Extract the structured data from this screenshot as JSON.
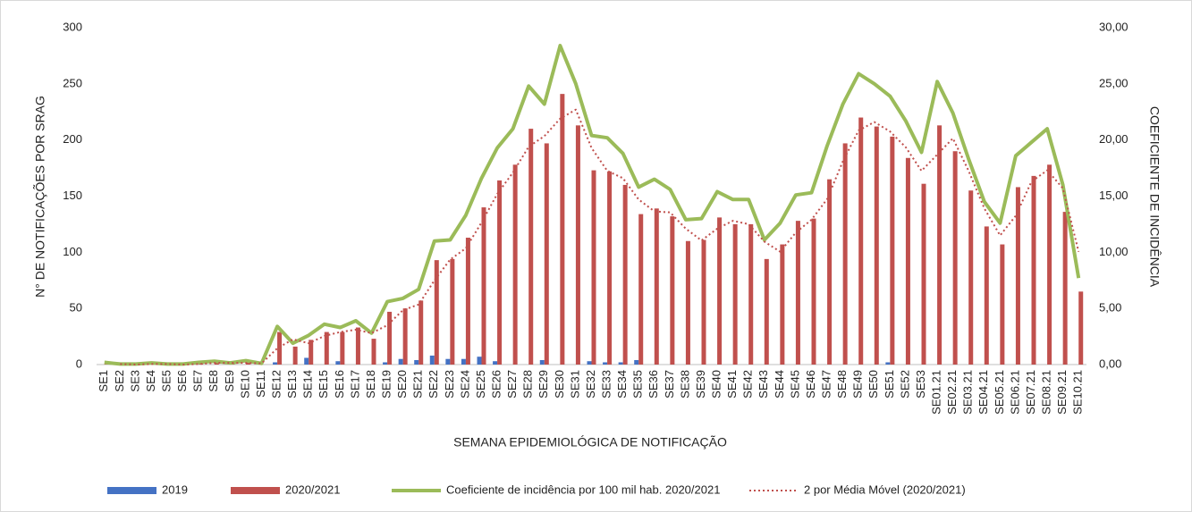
{
  "chart_data": {
    "type": "bar",
    "xlabel": "SEMANA EPIDEMIOLÓGICA DE NOTIFICAÇÃO",
    "ylabel": "N° DE NOTIFICAÇÕES POR SRAG",
    "y2label": "COEFICIENTE DE INCIDÊNCIA",
    "categories": [
      "SE1",
      "SE2",
      "SE3",
      "SE4",
      "SE5",
      "SE6",
      "SE7",
      "SE8",
      "SE9",
      "SE10",
      "SE11",
      "SE12",
      "SE13",
      "SE14",
      "SE15",
      "SE16",
      "SE17",
      "SE18",
      "SE19",
      "SE20",
      "SE21",
      "SE22",
      "SE23",
      "SE24",
      "SE25",
      "SE26",
      "SE27",
      "SE28",
      "SE29",
      "SE30",
      "SE31",
      "SE32",
      "SE33",
      "SE34",
      "SE35",
      "SE36",
      "SE37",
      "SE38",
      "SE39",
      "SE40",
      "SE41",
      "SE42",
      "SE43",
      "SE44",
      "SE45",
      "SE46",
      "SE47",
      "SE48",
      "SE49",
      "SE50",
      "SE51",
      "SE52",
      "SE53",
      "SE01.21",
      "SE02.21",
      "SE03.21",
      "SE04.21",
      "SE05.21",
      "SE06.21",
      "SE07.21",
      "SE08.21",
      "SE09.21",
      "SE10.21"
    ],
    "series": [
      {
        "name": "2019",
        "type": "bar",
        "color": "#4472c4",
        "values": [
          0,
          0,
          0,
          0,
          0,
          0,
          0,
          0,
          0,
          0,
          0,
          2,
          0,
          6,
          0,
          3,
          0,
          0,
          2,
          5,
          4,
          8,
          5,
          5,
          7,
          3,
          0,
          0,
          4,
          0,
          0,
          3,
          2,
          2,
          4,
          0,
          0,
          0,
          0,
          0,
          0,
          0,
          0,
          0,
          0,
          0,
          0,
          0,
          0,
          0,
          2,
          0,
          0,
          0,
          0,
          0,
          0,
          0,
          0,
          0,
          0,
          0,
          0
        ]
      },
      {
        "name": "2020/2021",
        "type": "bar",
        "color": "#c0504d",
        "values": [
          1,
          0,
          0,
          1,
          0,
          0,
          1,
          2,
          1,
          2,
          0,
          29,
          16,
          22,
          29,
          29,
          33,
          23,
          47,
          50,
          57,
          93,
          94,
          113,
          140,
          164,
          178,
          210,
          197,
          241,
          213,
          173,
          172,
          160,
          134,
          139,
          132,
          110,
          111,
          131,
          125,
          125,
          94,
          107,
          128,
          130,
          165,
          197,
          220,
          212,
          203,
          184,
          161,
          213,
          190,
          155,
          123,
          107,
          158,
          168,
          178,
          136,
          65
        ]
      },
      {
        "name": "Coeficiente de incidência por 100 mil hab. 2020/2021",
        "type": "line",
        "axis": "y2",
        "color": "#9bbb59",
        "values": [
          0.2,
          0.05,
          0.05,
          0.15,
          0.05,
          0.05,
          0.2,
          0.3,
          0.15,
          0.35,
          0.1,
          3.4,
          1.9,
          2.6,
          3.6,
          3.3,
          3.9,
          2.8,
          5.6,
          5.9,
          6.7,
          11.0,
          11.1,
          13.3,
          16.6,
          19.3,
          21.0,
          24.8,
          23.2,
          28.4,
          25.0,
          20.4,
          20.2,
          18.8,
          15.8,
          16.5,
          15.6,
          12.9,
          13.0,
          15.4,
          14.7,
          14.7,
          11.1,
          12.6,
          15.1,
          15.3,
          19.5,
          23.2,
          25.9,
          25.0,
          23.9,
          21.7,
          18.9,
          25.2,
          22.4,
          18.3,
          14.5,
          12.6,
          18.6,
          19.8,
          21.0,
          16.0,
          7.7
        ]
      },
      {
        "name": "2 por Média Móvel (2020/2021)",
        "type": "dotted",
        "color": "#c0504d",
        "values": [
          null,
          0.5,
          0,
          0.5,
          0.5,
          0,
          0.5,
          1.5,
          1.5,
          1.5,
          1,
          14.5,
          22.5,
          19,
          25.5,
          29,
          31,
          28,
          35,
          48.5,
          53.5,
          75,
          93.5,
          103.5,
          126.5,
          152,
          171,
          194,
          203.5,
          219,
          227,
          193,
          172.5,
          166,
          147,
          136.5,
          135.5,
          121,
          110.5,
          121,
          128,
          125,
          109.5,
          100.5,
          117.5,
          129,
          147.5,
          181,
          208.5,
          216,
          207.5,
          193.5,
          172.5,
          187,
          201.5,
          172.5,
          139,
          115,
          132.5,
          163,
          173,
          157,
          100.5
        ]
      }
    ],
    "ylim": [
      0,
      300
    ],
    "yticks": [
      0,
      50,
      100,
      150,
      200,
      250,
      300
    ],
    "y2lim": [
      0,
      30
    ],
    "y2ticks": [
      {
        "value": 0,
        "label": "0,00"
      },
      {
        "value": 5,
        "label": "5,00"
      },
      {
        "value": 10,
        "label": "10,00"
      },
      {
        "value": 15,
        "label": "15,00"
      },
      {
        "value": 20,
        "label": "20,00"
      },
      {
        "value": 25,
        "label": "25,00"
      },
      {
        "value": 30,
        "label": "30,00"
      }
    ],
    "legend": "bottom"
  }
}
